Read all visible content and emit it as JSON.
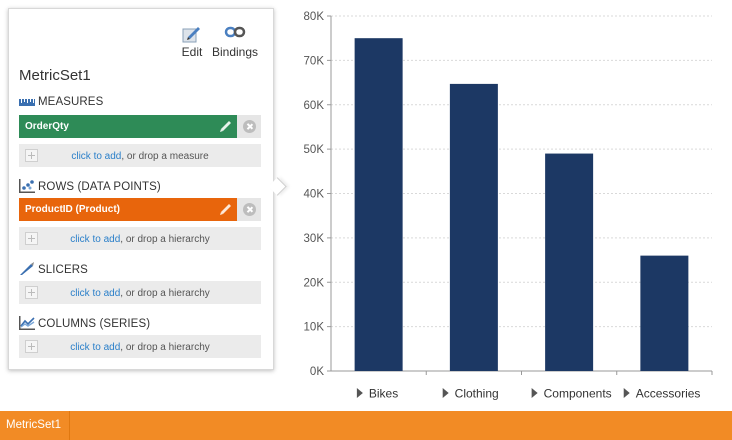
{
  "toolbar": {
    "edit_label": "Edit",
    "bindings_label": "Bindings",
    "edit_icon": "pencil-icon",
    "bindings_icon": "link-icon"
  },
  "metric_set": {
    "title": "MetricSet1"
  },
  "sections": {
    "measures": {
      "heading": "MEASURES",
      "icon": "measures-icon",
      "chip_label": "OrderQty",
      "chip_color": "#2e8b57",
      "dropzone_link": "click to add",
      "dropzone_text": ", or drop a measure"
    },
    "rows": {
      "heading": "ROWS (DATA POINTS)",
      "icon": "rows-icon",
      "chip_label": "ProductID (Product)",
      "chip_color": "#e8650c",
      "dropzone_link": "click to add",
      "dropzone_text": ", or drop a hierarchy"
    },
    "slicers": {
      "heading": "SLICERS",
      "icon": "slicers-icon",
      "dropzone_link": "click to add",
      "dropzone_text": ", or drop a hierarchy"
    },
    "columns": {
      "heading": "COLUMNS (SERIES)",
      "icon": "columns-icon",
      "dropzone_link": "click to add",
      "dropzone_text": ", or drop a hierarchy"
    }
  },
  "chart_data": {
    "type": "bar",
    "categories": [
      "Bikes",
      "Clothing",
      "Components",
      "Accessories"
    ],
    "values": [
      75000,
      64700,
      49000,
      26000
    ],
    "tick_labels": [
      "0K",
      "10K",
      "20K",
      "30K",
      "40K",
      "50K",
      "60K",
      "70K",
      "80K"
    ],
    "ylim": [
      0,
      80000
    ],
    "grid": true,
    "bar_color": "#1c3864"
  },
  "bottom_tabs": [
    {
      "label": "MetricSet1"
    }
  ],
  "colors": {
    "accent": "#f28b25"
  }
}
